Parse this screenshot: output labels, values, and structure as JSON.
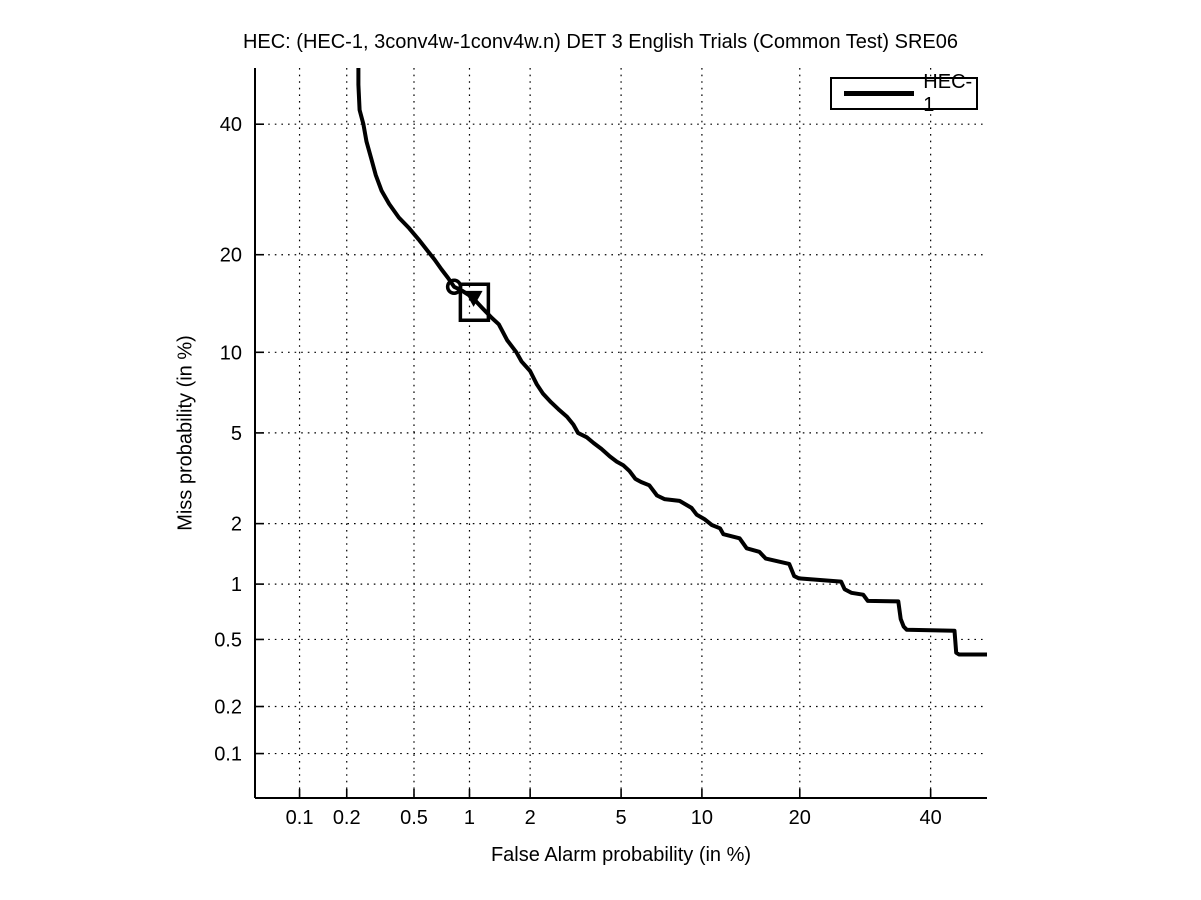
{
  "figure_title": "HEC: (HEC-1, 3conv4w-1conv4w.n) DET 3 English Trials (Common Test) SRE06",
  "colors": {
    "foreground": "#000000",
    "background": "#ffffff",
    "series_hec1": "#000000"
  },
  "legend": {
    "position": "top-right",
    "entries": [
      {
        "label": "HEC-1",
        "color": "#000000"
      }
    ]
  },
  "chart_data": {
    "type": "line",
    "subtype": "DET-curve",
    "title": "HEC: (HEC-1, 3conv4w-1conv4w.n) DET 3 English Trials (Common Test) SRE06",
    "xlabel": "False Alarm probability (in %)",
    "ylabel": "Miss probability (in %)",
    "scale": "probit-probit",
    "grid": "dotted",
    "xlim": [
      0.05,
      50
    ],
    "ylim": [
      0.05,
      50
    ],
    "x_ticks": {
      "values": [
        0.1,
        0.2,
        0.5,
        1,
        2,
        5,
        10,
        20,
        40
      ],
      "labels": [
        "0.1",
        "0.2",
        "0.5",
        "1",
        "2",
        "5",
        "10",
        "20",
        "40"
      ]
    },
    "y_ticks": {
      "values": [
        0.1,
        0.2,
        0.5,
        1,
        2,
        5,
        10,
        20,
        40
      ],
      "labels": [
        "0.1",
        "0.2",
        "0.5",
        "1",
        "2",
        "5",
        "10",
        "20",
        "40"
      ]
    },
    "series": [
      {
        "name": "HEC-1",
        "color": "#000000",
        "line_width": 4,
        "points_fa_miss_percent": [
          [
            0.236,
            50
          ],
          [
            0.236,
            47
          ],
          [
            0.24,
            42.5
          ],
          [
            0.253,
            40
          ],
          [
            0.264,
            37
          ],
          [
            0.283,
            34
          ],
          [
            0.3,
            31.5
          ],
          [
            0.325,
            29
          ],
          [
            0.36,
            27
          ],
          [
            0.41,
            25
          ],
          [
            0.47,
            23.5
          ],
          [
            0.53,
            22
          ],
          [
            0.6,
            20.4
          ],
          [
            0.65,
            19.4
          ],
          [
            0.71,
            18.2
          ],
          [
            0.77,
            17.2
          ],
          [
            0.83,
            16.2
          ],
          [
            0.91,
            15.8
          ],
          [
            1.03,
            15.1
          ],
          [
            1.16,
            14.0
          ],
          [
            1.3,
            13.0
          ],
          [
            1.41,
            12.4
          ],
          [
            1.55,
            11.0
          ],
          [
            1.72,
            10.0
          ],
          [
            1.82,
            9.3
          ],
          [
            2.0,
            8.6
          ],
          [
            2.15,
            7.7
          ],
          [
            2.3,
            7.1
          ],
          [
            2.5,
            6.6
          ],
          [
            2.7,
            6.2
          ],
          [
            2.95,
            5.8
          ],
          [
            3.15,
            5.4
          ],
          [
            3.3,
            5.0
          ],
          [
            3.6,
            4.8
          ],
          [
            3.85,
            4.55
          ],
          [
            4.15,
            4.3
          ],
          [
            4.5,
            4.0
          ],
          [
            4.8,
            3.8
          ],
          [
            5.1,
            3.67
          ],
          [
            5.4,
            3.46
          ],
          [
            5.7,
            3.2
          ],
          [
            6.0,
            3.1
          ],
          [
            6.45,
            3.0
          ],
          [
            6.9,
            2.7
          ],
          [
            7.35,
            2.6
          ],
          [
            8.35,
            2.55
          ],
          [
            9.2,
            2.37
          ],
          [
            9.6,
            2.2
          ],
          [
            10.2,
            2.1
          ],
          [
            10.8,
            1.97
          ],
          [
            11.5,
            1.9
          ],
          [
            11.8,
            1.78
          ],
          [
            13.3,
            1.7
          ],
          [
            14.0,
            1.52
          ],
          [
            15.3,
            1.46
          ],
          [
            16.0,
            1.35
          ],
          [
            18.7,
            1.27
          ],
          [
            19.3,
            1.1
          ],
          [
            19.9,
            1.07
          ],
          [
            25.6,
            1.03
          ],
          [
            26.1,
            0.94
          ],
          [
            27.1,
            0.9
          ],
          [
            28.9,
            0.88
          ],
          [
            29.6,
            0.815
          ],
          [
            34.5,
            0.81
          ],
          [
            34.9,
            0.65
          ],
          [
            35.4,
            0.59
          ],
          [
            35.9,
            0.567
          ],
          [
            44.2,
            0.56
          ],
          [
            44.5,
            0.42
          ],
          [
            45.0,
            0.41
          ],
          [
            50.0,
            0.41
          ]
        ]
      }
    ],
    "markers": [
      {
        "name": "min-dcf-circle-marker",
        "shape": "circle-open",
        "fa": 0.83,
        "miss": 16.2,
        "color": "#000000"
      },
      {
        "name": "act-dcf-triangle-marker",
        "shape": "triangle-down-filled",
        "fa": 1.05,
        "miss": 15.0,
        "color": "#000000"
      },
      {
        "name": "act-dcf-box-marker",
        "shape": "square-open",
        "fa": 1.06,
        "miss": 14.55,
        "color": "#000000"
      }
    ],
    "legend_position": "top-right",
    "legend_entries": [
      "HEC-1"
    ]
  }
}
